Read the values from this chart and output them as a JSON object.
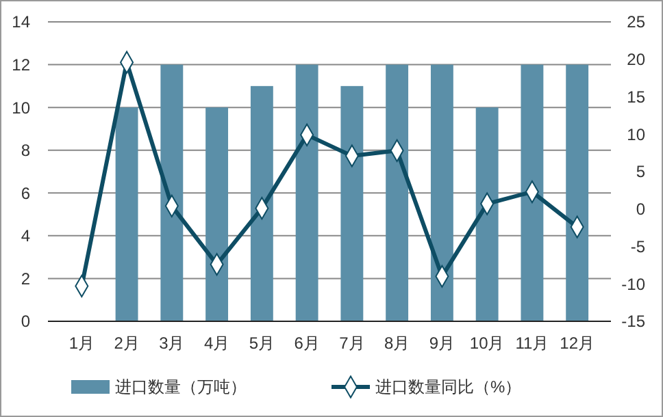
{
  "chart_data": {
    "type": "bar",
    "categories": [
      "1月",
      "2月",
      "3月",
      "4月",
      "5月",
      "6月",
      "7月",
      "8月",
      "9月",
      "10月",
      "11月",
      "12月"
    ],
    "series": [
      {
        "name": "进口数量（万吨）",
        "color": "#5b8fa8",
        "values": [
          null,
          10,
          12,
          10,
          11,
          12,
          11,
          12,
          12,
          10,
          12,
          12
        ]
      },
      {
        "name": "进口数量同比（%）",
        "type": "line",
        "axis": "y2",
        "color": "#0e4d64",
        "marker": "diamond",
        "values": [
          -10.3,
          19.6,
          0.4,
          -7.4,
          0.1,
          9.9,
          7.1,
          7.8,
          -9.0,
          0.7,
          2.3,
          -2.4
        ]
      }
    ],
    "ylim": [
      0,
      14
    ],
    "yticks": [
      0,
      2,
      4,
      6,
      8,
      10,
      12,
      14
    ],
    "y2lim": [
      -15,
      25
    ],
    "y2ticks": [
      -15,
      -10,
      -5,
      0,
      5,
      10,
      15,
      20,
      25
    ],
    "grid": "y",
    "legend": "bottom"
  }
}
